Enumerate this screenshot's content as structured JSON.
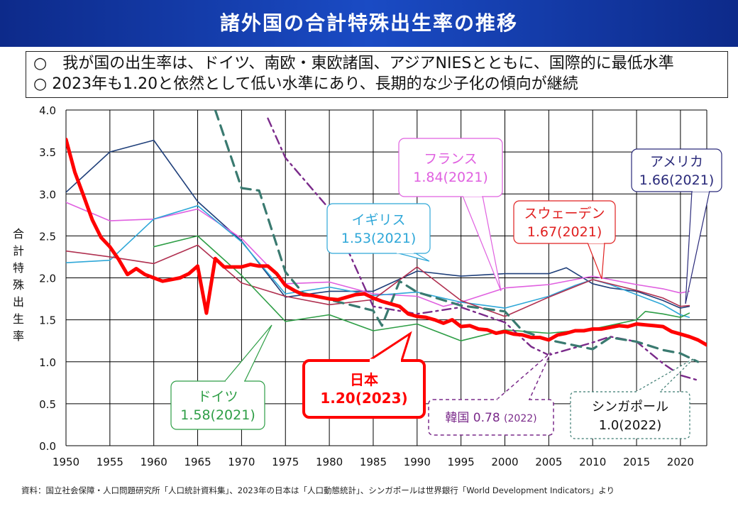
{
  "header": {
    "title": "諸外国の合計特殊出生率の推移"
  },
  "summary": [
    "○　我が国の出生率は、ドイツ、南欧・東欧諸国、アジアNIESとともに、国際的に最低水準",
    "○ 2023年も1.20と依然として低い水準にあり、長期的な少子化の傾向が継続"
  ],
  "source_note": "資料：国立社会保障・人口問題研究所「人口統計資料集」、2023年の日本は「人口動態統計」、シンガポールは世界銀行「World Development Indicators」より",
  "chart_data": {
    "type": "line",
    "ylabel": "合計特殊出生率",
    "xlim": [
      1950,
      2023
    ],
    "ylim": [
      0,
      4.0
    ],
    "grid": true,
    "x_ticks": [
      "1950",
      "1955",
      "1960",
      "1965",
      "1970",
      "1975",
      "1980",
      "1985",
      "1990",
      "1995",
      "2000",
      "2005",
      "2010",
      "2015",
      "2020"
    ],
    "y_ticks": [
      "0.0",
      "0.5",
      "1.0",
      "1.5",
      "2.0",
      "2.5",
      "3.0",
      "3.5",
      "4.0"
    ],
    "series": [
      {
        "name": "アメリカ",
        "color": "#1f3f7a",
        "style": "solid",
        "width": 1.6,
        "x": [
          1950,
          1955,
          1960,
          1965,
          1970,
          1975,
          1980,
          1985,
          1990,
          1995,
          2000,
          2005,
          2007,
          2010,
          2012,
          2015,
          2018,
          2020,
          2021
        ],
        "y": [
          3.02,
          3.5,
          3.64,
          2.91,
          2.44,
          1.77,
          1.84,
          1.84,
          2.08,
          2.02,
          2.05,
          2.05,
          2.12,
          1.93,
          1.88,
          1.84,
          1.73,
          1.64,
          1.66
        ]
      },
      {
        "name": "フランス",
        "color": "#e060e0",
        "style": "solid",
        "width": 1.6,
        "x": [
          1950,
          1955,
          1960,
          1965,
          1970,
          1975,
          1980,
          1985,
          1990,
          1993,
          1995,
          2000,
          2005,
          2010,
          2015,
          2018,
          2020,
          2021
        ],
        "y": [
          2.9,
          2.68,
          2.7,
          2.82,
          2.47,
          1.93,
          1.95,
          1.81,
          1.78,
          1.66,
          1.71,
          1.88,
          1.92,
          2.02,
          1.92,
          1.87,
          1.82,
          1.84
        ]
      },
      {
        "name": "イギリス",
        "color": "#2ea7d8",
        "style": "solid",
        "width": 1.6,
        "x": [
          1950,
          1955,
          1960,
          1965,
          1970,
          1975,
          1980,
          1985,
          1990,
          1995,
          2000,
          2005,
          2008,
          2010,
          2012,
          2015,
          2018,
          2020,
          2021
        ],
        "y": [
          2.18,
          2.21,
          2.7,
          2.86,
          2.43,
          1.81,
          1.89,
          1.79,
          1.83,
          1.71,
          1.64,
          1.78,
          1.91,
          1.98,
          1.92,
          1.8,
          1.68,
          1.56,
          1.53
        ]
      },
      {
        "name": "スウェーデン",
        "color": "#b03050",
        "style": "solid",
        "width": 1.6,
        "x": [
          1950,
          1955,
          1960,
          1965,
          1970,
          1975,
          1980,
          1985,
          1990,
          1995,
          2000,
          2005,
          2010,
          2015,
          2018,
          2020,
          2021
        ],
        "y": [
          2.32,
          2.25,
          2.17,
          2.39,
          1.94,
          1.78,
          1.68,
          1.74,
          2.13,
          1.73,
          1.54,
          1.77,
          1.98,
          1.85,
          1.76,
          1.66,
          1.67
        ]
      },
      {
        "name": "ドイツ",
        "color": "#2e9e46",
        "style": "solid",
        "width": 1.6,
        "x": [
          1960,
          1965,
          1970,
          1975,
          1980,
          1985,
          1990,
          1995,
          2000,
          2005,
          2010,
          2015,
          2016,
          2018,
          2020,
          2021
        ],
        "y": [
          2.37,
          2.5,
          2.03,
          1.48,
          1.56,
          1.37,
          1.45,
          1.25,
          1.38,
          1.34,
          1.39,
          1.5,
          1.6,
          1.57,
          1.53,
          1.58
        ]
      },
      {
        "name": "韓国",
        "color": "#7a2a8a",
        "style": "dashdot",
        "width": 2.4,
        "x": [
          1973,
          1975,
          1980,
          1985,
          1990,
          1995,
          2000,
          2003,
          2005,
          2010,
          2012,
          2015,
          2018,
          2020,
          2022
        ],
        "y": [
          3.9,
          3.43,
          2.82,
          1.66,
          1.57,
          1.65,
          1.47,
          1.18,
          1.08,
          1.23,
          1.3,
          1.24,
          0.98,
          0.84,
          0.78
        ]
      },
      {
        "name": "シンガポール",
        "color": "#3a7a70",
        "style": "dashed",
        "width": 3.2,
        "x": [
          1967,
          1970,
          1972,
          1975,
          1977,
          1980,
          1985,
          1986,
          1988,
          1990,
          1995,
          2000,
          2002,
          2005,
          2010,
          2012,
          2015,
          2018,
          2020,
          2022
        ],
        "y": [
          4.0,
          3.07,
          3.04,
          2.07,
          1.82,
          1.74,
          1.61,
          1.43,
          1.96,
          1.83,
          1.67,
          1.6,
          1.37,
          1.26,
          1.15,
          1.29,
          1.24,
          1.14,
          1.1,
          1.0
        ]
      },
      {
        "name": "日本",
        "color": "#ff0000",
        "style": "solid",
        "width": 5,
        "x": [
          1950,
          1951,
          1952,
          1953,
          1954,
          1955,
          1956,
          1957,
          1958,
          1959,
          1960,
          1961,
          1962,
          1963,
          1964,
          1965,
          1966,
          1967,
          1968,
          1969,
          1970,
          1971,
          1972,
          1973,
          1974,
          1975,
          1976,
          1977,
          1978,
          1979,
          1980,
          1981,
          1982,
          1983,
          1984,
          1985,
          1986,
          1987,
          1988,
          1989,
          1990,
          1991,
          1992,
          1993,
          1994,
          1995,
          1996,
          1997,
          1998,
          1999,
          2000,
          2001,
          2002,
          2003,
          2004,
          2005,
          2006,
          2007,
          2008,
          2009,
          2010,
          2011,
          2012,
          2013,
          2014,
          2015,
          2016,
          2017,
          2018,
          2019,
          2020,
          2021,
          2022,
          2023
        ],
        "y": [
          3.65,
          3.26,
          2.98,
          2.69,
          2.48,
          2.37,
          2.22,
          2.04,
          2.11,
          2.04,
          2.0,
          1.96,
          1.98,
          2.0,
          2.05,
          2.14,
          1.58,
          2.23,
          2.13,
          2.13,
          2.13,
          2.16,
          2.14,
          2.14,
          2.05,
          1.91,
          1.85,
          1.8,
          1.79,
          1.77,
          1.75,
          1.74,
          1.77,
          1.8,
          1.81,
          1.76,
          1.72,
          1.69,
          1.66,
          1.57,
          1.54,
          1.53,
          1.5,
          1.46,
          1.5,
          1.42,
          1.43,
          1.39,
          1.38,
          1.34,
          1.36,
          1.33,
          1.32,
          1.29,
          1.29,
          1.26,
          1.32,
          1.34,
          1.37,
          1.37,
          1.39,
          1.39,
          1.41,
          1.43,
          1.42,
          1.45,
          1.44,
          1.43,
          1.42,
          1.36,
          1.33,
          1.3,
          1.26,
          1.2
        ]
      }
    ],
    "callouts": [
      {
        "country": "フランス",
        "value": "1.84(2021)",
        "color": "#e060e0",
        "text_color": "#e060e0"
      },
      {
        "country": "アメリカ",
        "value": "1.66(2021)",
        "color": "#2a2a7a",
        "text_color": "#2a2a7a"
      },
      {
        "country": "イギリス",
        "value": "1.53(2021)",
        "color": "#2ea7d8",
        "text_color": "#2ea7d8"
      },
      {
        "country": "スウェーデン",
        "value": "1.67(2021)",
        "color": "#e02020",
        "text_color": "#e02020"
      },
      {
        "country": "ドイツ",
        "value": "1.58(2021)",
        "color": "#2e9e46",
        "text_color": "#2e9e46"
      },
      {
        "country": "日本",
        "value": "1.20(2023)",
        "color": "#ff0000",
        "text_color": "#ff0000"
      },
      {
        "country": "韓国",
        "value": "0.78",
        "year_note": "(2022)",
        "color": "#7a2a8a",
        "text_color": "#7a2a8a"
      },
      {
        "country": "シンガポール",
        "value": "1.0(2022)",
        "color": "#3a7a70",
        "text_color": "#111111"
      }
    ]
  }
}
